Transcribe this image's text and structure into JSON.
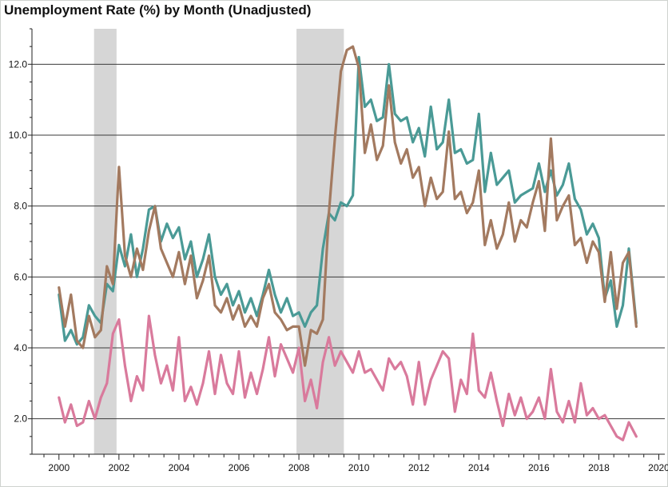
{
  "chart_data": {
    "type": "line",
    "title": "Unemployment Rate (%) by Month (Unadjusted)",
    "xlabel": "",
    "ylabel": "",
    "xlim": [
      1999.1,
      2020.2
    ],
    "ylim": [
      1.0,
      13.0
    ],
    "grid": "horizontal",
    "legend": "none",
    "x_ticks": [
      2000,
      2002,
      2004,
      2006,
      2008,
      2010,
      2012,
      2014,
      2016,
      2018,
      2020
    ],
    "y_ticks": [
      2.0,
      4.0,
      6.0,
      8.0,
      10.0,
      12.0
    ],
    "y_tick_labels": [
      "2.0",
      "4.0",
      "6.0",
      "8.0",
      "10.0",
      "12.0"
    ],
    "recessions": [
      {
        "start": 2001.17,
        "end": 2001.92
      },
      {
        "start": 2007.92,
        "end": 2009.5
      }
    ],
    "series": [
      {
        "color": "#4a9a96",
        "x": [
          2000.0,
          2000.2,
          2000.4,
          2000.6,
          2000.8,
          2001.0,
          2001.2,
          2001.4,
          2001.6,
          2001.8,
          2002.0,
          2002.2,
          2002.4,
          2002.6,
          2002.8,
          2003.0,
          2003.2,
          2003.4,
          2003.6,
          2003.8,
          2004.0,
          2004.2,
          2004.4,
          2004.6,
          2004.8,
          2005.0,
          2005.2,
          2005.4,
          2005.6,
          2005.8,
          2006.0,
          2006.2,
          2006.4,
          2006.6,
          2006.8,
          2007.0,
          2007.2,
          2007.4,
          2007.6,
          2007.8,
          2008.0,
          2008.2,
          2008.4,
          2008.6,
          2008.8,
          2009.0,
          2009.2,
          2009.4,
          2009.6,
          2009.8,
          2010.0,
          2010.2,
          2010.4,
          2010.6,
          2010.8,
          2011.0,
          2011.2,
          2011.4,
          2011.6,
          2011.8,
          2012.0,
          2012.2,
          2012.4,
          2012.6,
          2012.8,
          2013.0,
          2013.2,
          2013.4,
          2013.6,
          2013.8,
          2014.0,
          2014.2,
          2014.4,
          2014.6,
          2014.8,
          2015.0,
          2015.2,
          2015.4,
          2015.6,
          2015.8,
          2016.0,
          2016.2,
          2016.4,
          2016.6,
          2016.8,
          2017.0,
          2017.2,
          2017.4,
          2017.6,
          2017.8,
          2018.0,
          2018.2,
          2018.4,
          2018.6,
          2018.8,
          2019.0,
          2019.25
        ],
        "y": [
          5.5,
          4.2,
          4.5,
          4.1,
          4.3,
          5.2,
          4.9,
          4.7,
          5.8,
          5.6,
          6.9,
          6.3,
          7.2,
          6.0,
          6.8,
          7.9,
          8.0,
          7.0,
          7.5,
          7.1,
          7.4,
          6.5,
          7.0,
          6.0,
          6.5,
          7.2,
          6.0,
          5.5,
          5.8,
          5.2,
          5.6,
          5.0,
          5.4,
          4.9,
          5.5,
          6.2,
          5.5,
          5.0,
          5.4,
          4.9,
          5.0,
          4.6,
          5.0,
          5.2,
          6.8,
          7.8,
          7.6,
          8.1,
          8.0,
          8.3,
          12.2,
          10.8,
          11.0,
          10.4,
          10.5,
          12.0,
          10.6,
          10.4,
          10.5,
          9.8,
          10.2,
          9.4,
          10.8,
          9.6,
          9.8,
          11.0,
          9.5,
          9.6,
          9.2,
          9.3,
          10.6,
          8.4,
          9.5,
          8.6,
          8.8,
          9.0,
          8.1,
          8.3,
          8.4,
          8.5,
          9.2,
          8.4,
          9.0,
          8.3,
          8.6,
          9.2,
          8.2,
          7.9,
          7.2,
          7.5,
          7.1,
          5.4,
          5.9,
          4.6,
          5.2,
          6.8,
          4.7
        ]
      },
      {
        "color": "#a37a60",
        "x": [
          2000.0,
          2000.2,
          2000.4,
          2000.6,
          2000.8,
          2001.0,
          2001.2,
          2001.4,
          2001.6,
          2001.8,
          2002.0,
          2002.2,
          2002.4,
          2002.6,
          2002.8,
          2003.0,
          2003.2,
          2003.4,
          2003.6,
          2003.8,
          2004.0,
          2004.2,
          2004.4,
          2004.6,
          2004.8,
          2005.0,
          2005.2,
          2005.4,
          2005.6,
          2005.8,
          2006.0,
          2006.2,
          2006.4,
          2006.6,
          2006.8,
          2007.0,
          2007.2,
          2007.4,
          2007.6,
          2007.8,
          2008.0,
          2008.2,
          2008.4,
          2008.6,
          2008.8,
          2009.0,
          2009.2,
          2009.4,
          2009.6,
          2009.8,
          2010.0,
          2010.2,
          2010.4,
          2010.6,
          2010.8,
          2011.0,
          2011.2,
          2011.4,
          2011.6,
          2011.8,
          2012.0,
          2012.2,
          2012.4,
          2012.6,
          2012.8,
          2013.0,
          2013.2,
          2013.4,
          2013.6,
          2013.8,
          2014.0,
          2014.2,
          2014.4,
          2014.6,
          2014.8,
          2015.0,
          2015.2,
          2015.4,
          2015.6,
          2015.8,
          2016.0,
          2016.2,
          2016.4,
          2016.6,
          2016.8,
          2017.0,
          2017.2,
          2017.4,
          2017.6,
          2017.8,
          2018.0,
          2018.2,
          2018.4,
          2018.6,
          2018.8,
          2019.0,
          2019.25
        ],
        "y": [
          5.7,
          4.6,
          5.5,
          4.2,
          4.0,
          4.9,
          4.3,
          4.5,
          6.3,
          5.8,
          9.1,
          6.6,
          6.0,
          6.8,
          6.2,
          7.3,
          8.0,
          6.8,
          6.4,
          6.0,
          6.7,
          5.8,
          6.6,
          5.4,
          5.9,
          6.6,
          5.2,
          5.0,
          5.4,
          4.8,
          5.2,
          4.6,
          4.9,
          4.6,
          5.4,
          5.8,
          5.0,
          4.8,
          4.5,
          4.6,
          4.6,
          3.5,
          4.5,
          4.4,
          4.8,
          7.8,
          9.9,
          11.8,
          12.4,
          12.5,
          11.9,
          9.5,
          10.3,
          9.3,
          9.7,
          11.4,
          9.8,
          9.2,
          9.6,
          8.8,
          9.1,
          8.0,
          8.8,
          8.2,
          8.4,
          10.1,
          8.2,
          8.4,
          7.8,
          8.1,
          9.0,
          6.9,
          7.6,
          6.8,
          7.2,
          8.1,
          7.0,
          7.6,
          7.4,
          8.1,
          8.7,
          7.3,
          9.9,
          7.6,
          8.0,
          8.3,
          6.9,
          7.1,
          6.4,
          7.0,
          6.7,
          5.3,
          6.7,
          5.1,
          6.4,
          6.7,
          4.6
        ]
      },
      {
        "color": "#d97a9c",
        "x": [
          2000.0,
          2000.2,
          2000.4,
          2000.6,
          2000.8,
          2001.0,
          2001.2,
          2001.4,
          2001.6,
          2001.8,
          2002.0,
          2002.2,
          2002.4,
          2002.6,
          2002.8,
          2003.0,
          2003.2,
          2003.4,
          2003.6,
          2003.8,
          2004.0,
          2004.2,
          2004.4,
          2004.6,
          2004.8,
          2005.0,
          2005.2,
          2005.4,
          2005.6,
          2005.8,
          2006.0,
          2006.2,
          2006.4,
          2006.6,
          2006.8,
          2007.0,
          2007.2,
          2007.4,
          2007.6,
          2007.8,
          2008.0,
          2008.2,
          2008.4,
          2008.6,
          2008.8,
          2009.0,
          2009.2,
          2009.4,
          2009.6,
          2009.8,
          2010.0,
          2010.2,
          2010.4,
          2010.6,
          2010.8,
          2011.0,
          2011.2,
          2011.4,
          2011.6,
          2011.8,
          2012.0,
          2012.2,
          2012.4,
          2012.6,
          2012.8,
          2013.0,
          2013.2,
          2013.4,
          2013.6,
          2013.8,
          2014.0,
          2014.2,
          2014.4,
          2014.6,
          2014.8,
          2015.0,
          2015.2,
          2015.4,
          2015.6,
          2015.8,
          2016.0,
          2016.2,
          2016.4,
          2016.6,
          2016.8,
          2017.0,
          2017.2,
          2017.4,
          2017.6,
          2017.8,
          2018.0,
          2018.2,
          2018.4,
          2018.6,
          2018.8,
          2019.0,
          2019.25
        ],
        "y": [
          2.6,
          1.9,
          2.4,
          1.8,
          1.9,
          2.5,
          2.0,
          2.6,
          3.0,
          4.4,
          4.8,
          3.5,
          2.5,
          3.2,
          2.8,
          4.9,
          3.8,
          3.0,
          3.5,
          2.8,
          4.3,
          2.5,
          2.9,
          2.4,
          3.0,
          3.9,
          2.7,
          3.8,
          3.0,
          2.7,
          3.9,
          2.6,
          3.3,
          2.7,
          3.4,
          4.3,
          3.2,
          4.1,
          3.7,
          3.3,
          4.0,
          2.5,
          3.1,
          2.3,
          3.6,
          4.3,
          3.5,
          3.9,
          3.6,
          3.3,
          3.9,
          3.3,
          3.4,
          3.1,
          2.8,
          3.7,
          3.4,
          3.6,
          3.2,
          2.4,
          3.6,
          2.4,
          3.1,
          3.5,
          3.9,
          3.7,
          2.2,
          3.1,
          2.7,
          4.4,
          2.8,
          2.6,
          3.3,
          2.5,
          1.8,
          2.7,
          2.1,
          2.6,
          2.0,
          2.2,
          2.6,
          2.0,
          3.4,
          2.2,
          1.9,
          2.5,
          1.9,
          3.0,
          2.1,
          2.3,
          2.0,
          2.1,
          1.8,
          1.5,
          1.4,
          1.9,
          1.5
        ]
      }
    ]
  }
}
